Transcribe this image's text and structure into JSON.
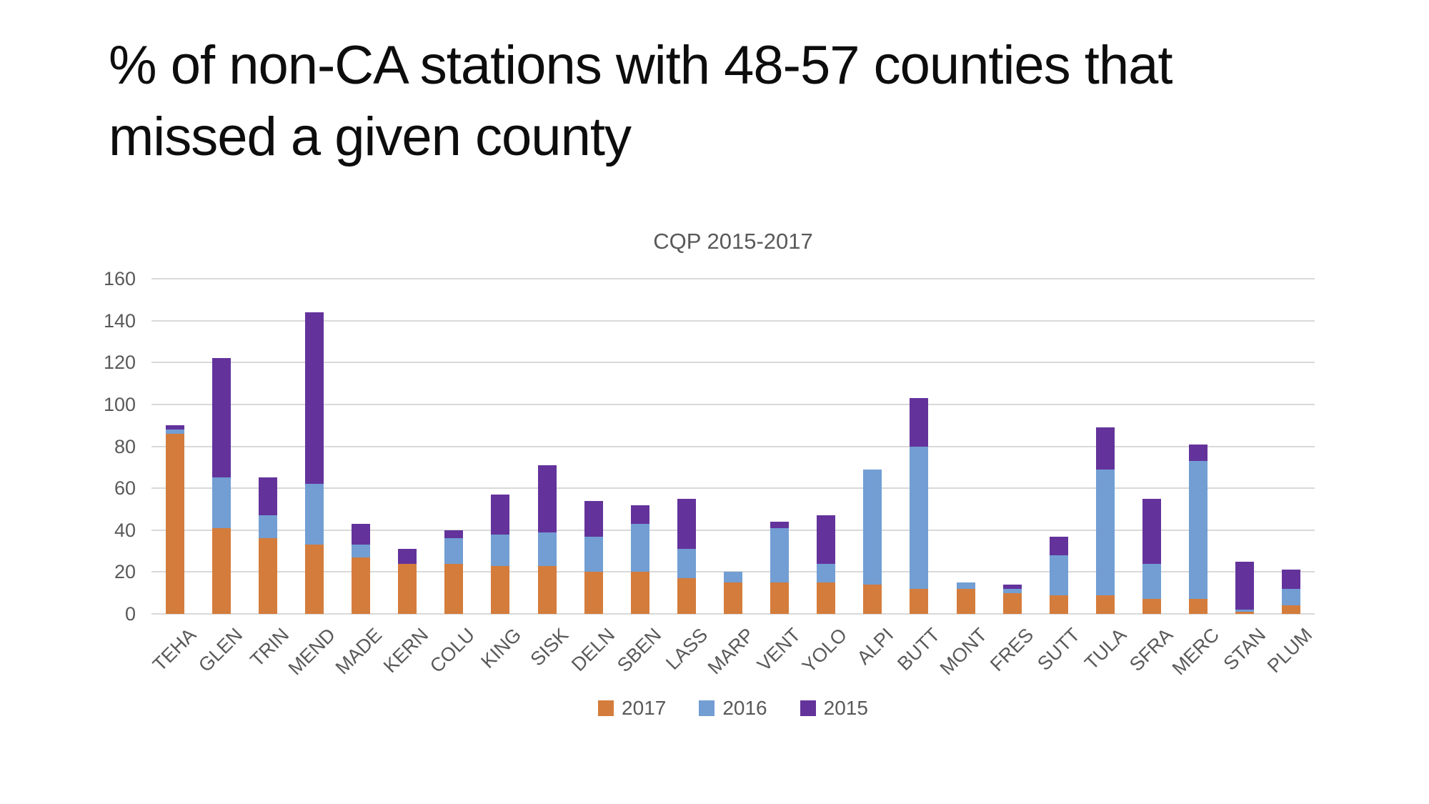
{
  "slide": {
    "title": "% of non-CA stations with 48-57 counties that missed a given county"
  },
  "chart_data": {
    "type": "bar",
    "stacked": true,
    "title": "CQP 2015-2017",
    "xlabel": "",
    "ylabel": "",
    "ylim": [
      0,
      160
    ],
    "yticks": [
      0,
      20,
      40,
      60,
      80,
      100,
      120,
      140,
      160
    ],
    "grid": true,
    "legend_position": "bottom",
    "gridline_color": "#d9d9d9",
    "axis_text_color": "#595959",
    "categories": [
      "TEHA",
      "GLEN",
      "TRIN",
      "MEND",
      "MADE",
      "KERN",
      "COLU",
      "KING",
      "SISK",
      "DELN",
      "SBEN",
      "LASS",
      "MARP",
      "VENT",
      "YOLO",
      "ALPI",
      "BUTT",
      "MONT",
      "FRES",
      "SUTT",
      "TULA",
      "SFRA",
      "MERC",
      "STAN",
      "PLUM"
    ],
    "series": [
      {
        "name": "2017",
        "color": "#d47c3c",
        "values": [
          86,
          41,
          36,
          33,
          27,
          24,
          24,
          23,
          23,
          20,
          20,
          17,
          15,
          15,
          15,
          14,
          12,
          12,
          10,
          9,
          9,
          7,
          7,
          1,
          4
        ]
      },
      {
        "name": "2016",
        "color": "#729ed3",
        "values": [
          2,
          24,
          11,
          29,
          6,
          0,
          12,
          15,
          16,
          17,
          23,
          14,
          5,
          26,
          9,
          55,
          68,
          3,
          2,
          19,
          60,
          17,
          66,
          1,
          8
        ]
      },
      {
        "name": "2015",
        "color": "#63339b",
        "values": [
          2,
          57,
          18,
          82,
          10,
          7,
          4,
          19,
          32,
          17,
          9,
          24,
          0,
          3,
          23,
          0,
          23,
          0,
          2,
          9,
          20,
          31,
          8,
          23,
          9
        ]
      }
    ]
  }
}
